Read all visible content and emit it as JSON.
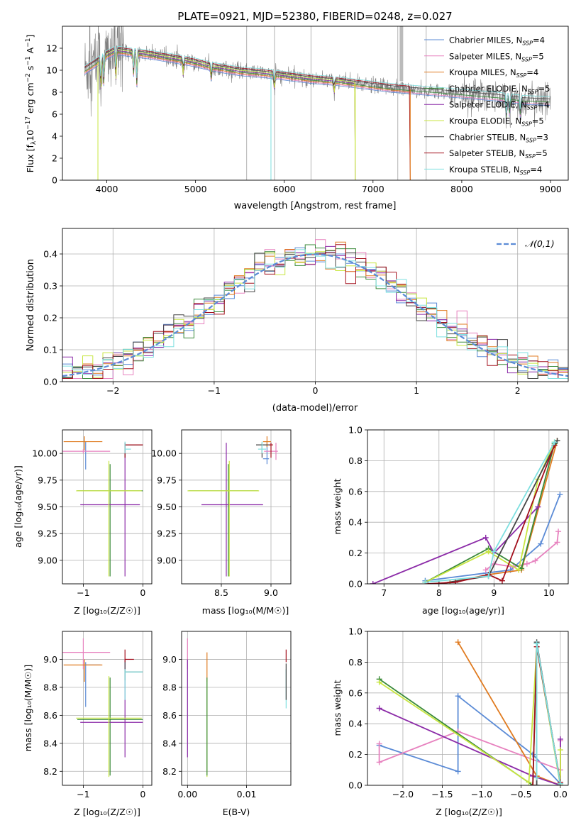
{
  "colors": {
    "Chabrier MILES": "#5b8bd6",
    "Salpeter MILES": "#e782bf",
    "Kroupa MILES": "#e07b20",
    "Chabrier ELODIE": "#3a8a3a",
    "Salpeter ELODIE": "#8c2ca8",
    "Kroupa ELODIE": "#c8e640",
    "Chabrier STELIB": "#454545",
    "Salpeter STELIB": "#a3101d",
    "Kroupa STELIB": "#7ee0e0",
    "data": "#808080",
    "gaussian": "#5b8bd6"
  },
  "chart_data": [
    {
      "type": "line",
      "title": "PLATE=0921, MJD=52380, FIBERID=0248, z=0.027",
      "xlabel": "wavelength [Angstrom, rest frame]",
      "ylabel": "Flux [fλ10⁻¹⁷ erg cm⁻² s⁻¹ A⁻¹]",
      "xlim": [
        3500,
        9200
      ],
      "ylim": [
        0,
        14
      ],
      "xticks": [
        4000,
        5000,
        6000,
        7000,
        8000,
        9000
      ],
      "yticks": [
        0,
        2,
        4,
        6,
        8,
        10,
        12
      ],
      "legend_position": "upper-right",
      "legend": [
        {
          "name": "Chabrier MILES",
          "nssp": "N_SSP=4"
        },
        {
          "name": "Salpeter MILES",
          "nssp": "N_SSP=5"
        },
        {
          "name": "Kroupa MILES",
          "nssp": "N_SSP=4"
        },
        {
          "name": "Chabrier ELODIE",
          "nssp": "N_SSP=5"
        },
        {
          "name": "Salpeter ELODIE",
          "nssp": "N_SSP=4"
        },
        {
          "name": "Kroupa ELODIE",
          "nssp": "N_SSP=5"
        },
        {
          "name": "Chabrier STELIB",
          "nssp": "N_SSP=3"
        },
        {
          "name": "Salpeter STELIB",
          "nssp": "N_SSP=5"
        },
        {
          "name": "Kroupa STELIB",
          "nssp": "N_SSP=4"
        }
      ],
      "continuum": {
        "x": [
          3750,
          3900,
          4000,
          4100,
          4300,
          4500,
          4800,
          5000,
          5200,
          5500,
          5800,
          6000,
          6300,
          6600,
          7000,
          7200,
          7500,
          7800,
          8100,
          8400,
          8700,
          9000,
          9200
        ],
        "y": [
          10.0,
          10.8,
          11.4,
          11.8,
          11.6,
          11.4,
          11.0,
          10.7,
          10.3,
          9.9,
          9.7,
          9.5,
          9.2,
          9.0,
          8.6,
          8.4,
          8.2,
          8.0,
          7.8,
          7.6,
          7.3,
          7.2,
          7.1
        ]
      },
      "model_ranges": [
        [
          3750,
          9000
        ],
        [
          3750,
          9000
        ],
        [
          3750,
          7420
        ],
        [
          3750,
          9000
        ],
        [
          3900,
          6800
        ],
        [
          3900,
          6800
        ],
        [
          3750,
          9000
        ],
        [
          3750,
          7420
        ],
        [
          3750,
          9000
        ]
      ]
    },
    {
      "type": "histogram",
      "xlabel": "(data-model)/error",
      "ylabel": "Normed distribution",
      "xlim": [
        -2.5,
        2.5
      ],
      "ylim": [
        0,
        0.48
      ],
      "xticks": [
        -2,
        -1,
        0,
        1,
        2
      ],
      "yticks": [
        0,
        0.1,
        0.2,
        0.3,
        0.4
      ],
      "grid": true,
      "legend_label": "𝒩(0,1)",
      "legend_position": "upper-right",
      "bin_width": 0.1
    },
    {
      "type": "errorbar",
      "xlabel": "Z [log₁₀(Z/Z☉)]",
      "ylabel": "age  [log₁₀(age/yr)]",
      "xlim": [
        -1.35,
        0.15
      ],
      "ylim": [
        8.78,
        10.22
      ],
      "xticks": [
        -1,
        0
      ],
      "yticks": [
        9.0,
        9.25,
        9.5,
        9.75,
        10.0
      ],
      "grid": true,
      "points": [
        {
          "s": "Chabrier MILES",
          "x": -0.96,
          "y": 9.95,
          "xe": [
            0,
            0
          ],
          "ye": [
            0.1,
            0.16
          ]
        },
        {
          "s": "Salpeter MILES",
          "x": -1.0,
          "y": 10.02,
          "xe": [
            0.35,
            0.45
          ],
          "ye": [
            0.02,
            0.02
          ]
        },
        {
          "s": "Kroupa MILES",
          "x": -0.98,
          "y": 10.11,
          "xe": [
            0.35,
            0.3
          ],
          "ye": [
            0.08,
            0.05
          ]
        },
        {
          "s": "Chabrier ELODIE",
          "x": -0.55,
          "y": 9.65,
          "xe": [
            0.55,
            0.55
          ],
          "ye": [
            0.8,
            0.25
          ]
        },
        {
          "s": "Salpeter ELODIE",
          "x": -0.3,
          "y": 9.52,
          "xe": [
            0.75,
            0.25
          ],
          "ye": [
            0.67,
            0.58
          ]
        },
        {
          "s": "Kroupa ELODIE",
          "x": -0.57,
          "y": 9.65,
          "xe": [
            0.55,
            0.55
          ],
          "ye": [
            0.8,
            0.28
          ]
        },
        {
          "s": "Chabrier STELIB",
          "x": -0.3,
          "y": 10.08,
          "xe": [
            0,
            0.3
          ],
          "ye": [
            0.12,
            0.02
          ]
        },
        {
          "s": "Salpeter STELIB",
          "x": -0.3,
          "y": 10.08,
          "xe": [
            0,
            0.3
          ],
          "ye": [
            0.12,
            0.02
          ]
        },
        {
          "s": "Kroupa STELIB",
          "x": -0.3,
          "y": 10.04,
          "xe": [
            0,
            0.1
          ],
          "ye": [
            0.04,
            0.07
          ]
        }
      ]
    },
    {
      "type": "errorbar",
      "xlabel": "mass [log₁₀(M/M☉)]",
      "xlim": [
        8.1,
        9.2
      ],
      "ylim": [
        8.78,
        10.22
      ],
      "xticks": [
        8.5,
        9.0
      ],
      "yticks": [
        9.0,
        9.25,
        9.5,
        9.75,
        10.0
      ],
      "grid": true,
      "points": [
        {
          "s": "Chabrier MILES",
          "x": 8.96,
          "y": 9.95,
          "xe": [
            0.04,
            0.02
          ],
          "ye": [
            0.05,
            0.16
          ]
        },
        {
          "s": "Salpeter MILES",
          "x": 9.05,
          "y": 10.02,
          "xe": [
            0.12,
            0.02
          ],
          "ye": [
            0.08,
            0.08
          ]
        },
        {
          "s": "Kroupa MILES",
          "x": 8.96,
          "y": 10.11,
          "xe": [
            0.04,
            0.04
          ],
          "ye": [
            0.05,
            0.05
          ]
        },
        {
          "s": "Chabrier ELODIE",
          "x": 8.57,
          "y": 9.65,
          "xe": [
            0.4,
            0.3
          ],
          "ye": [
            0.8,
            0.25
          ]
        },
        {
          "s": "Salpeter ELODIE",
          "x": 8.55,
          "y": 9.52,
          "xe": [
            0.25,
            0.37
          ],
          "ye": [
            0.67,
            0.58
          ]
        },
        {
          "s": "Kroupa ELODIE",
          "x": 8.58,
          "y": 9.65,
          "xe": [
            0.42,
            0.3
          ],
          "ye": [
            0.8,
            0.28
          ]
        },
        {
          "s": "Chabrier STELIB",
          "x": 8.91,
          "y": 10.08,
          "xe": [
            0.06,
            0.09
          ],
          "ye": [
            0.12,
            0.02
          ]
        },
        {
          "s": "Salpeter STELIB",
          "x": 9.0,
          "y": 10.08,
          "xe": [
            0.02,
            0.02
          ],
          "ye": [
            0.12,
            0.02
          ]
        },
        {
          "s": "Kroupa STELIB",
          "x": 8.91,
          "y": 10.04,
          "xe": [
            0.04,
            0.04
          ],
          "ye": [
            0.04,
            0.07
          ]
        }
      ]
    },
    {
      "type": "line",
      "xlabel": "age  [log₁₀(age/yr)]",
      "ylabel": "mass weight",
      "xlim": [
        6.7,
        10.35
      ],
      "ylim": [
        0,
        1
      ],
      "xticks": [
        7,
        8,
        9,
        10
      ],
      "yticks": [
        0,
        0.2,
        0.4,
        0.6,
        0.8,
        1.0
      ],
      "grid": true,
      "series": [
        {
          "s": "Chabrier MILES",
          "x": [
            7.75,
            8.85,
            9.3,
            9.85,
            10.2
          ],
          "y": [
            0.02,
            0.07,
            0.09,
            0.26,
            0.58
          ]
        },
        {
          "s": "Salpeter MILES",
          "x": [
            8.85,
            9.0,
            9.35,
            9.6,
            9.75,
            10.15,
            10.17
          ],
          "y": [
            0.09,
            0.13,
            0.11,
            0.13,
            0.15,
            0.27,
            0.34
          ]
        },
        {
          "s": "Kroupa MILES",
          "x": [
            8.2,
            8.9,
            9.5,
            10.15
          ],
          "y": [
            0.01,
            0.06,
            0.09,
            0.93
          ]
        },
        {
          "s": "Chabrier ELODIE",
          "x": [
            7.75,
            8.9,
            9.5,
            10.1
          ],
          "y": [
            0.01,
            0.23,
            0.1,
            0.91
          ]
        },
        {
          "s": "Salpeter ELODIE",
          "x": [
            6.8,
            8.85,
            9.0,
            9.8
          ],
          "y": [
            0.0,
            0.3,
            0.2,
            0.5
          ]
        },
        {
          "s": "Kroupa ELODIE",
          "x": [
            7.75,
            8.9,
            9.45,
            9.8,
            10.1
          ],
          "y": [
            0.01,
            0.21,
            0.09,
            0.68,
            0.92
          ]
        },
        {
          "s": "Chabrier STELIB",
          "x": [
            8.0,
            8.9,
            10.15
          ],
          "y": [
            0.0,
            0.05,
            0.93
          ]
        },
        {
          "s": "Salpeter STELIB",
          "x": [
            7.8,
            8.3,
            8.9,
            9.15,
            10.1
          ],
          "y": [
            0.0,
            0.01,
            0.06,
            0.02,
            0.9
          ]
        },
        {
          "s": "Kroupa STELIB",
          "x": [
            7.75,
            8.9,
            9.0,
            10.1
          ],
          "y": [
            0.01,
            0.05,
            0.21,
            0.92
          ]
        }
      ]
    },
    {
      "type": "errorbar",
      "xlabel": "Z [log₁₀(Z/Z☉)]",
      "ylabel": "mass [log₁₀(M/M☉)]",
      "xlim": [
        -1.35,
        0.15
      ],
      "ylim": [
        8.1,
        9.2
      ],
      "xticks": [
        -1,
        0
      ],
      "yticks": [
        8.2,
        8.4,
        8.6,
        8.8,
        9.0
      ],
      "grid": true,
      "points": [
        {
          "s": "Chabrier MILES",
          "x": -0.96,
          "y": 8.96,
          "xe": [
            0,
            0.25
          ],
          "ye": [
            0.3,
            0.02
          ]
        },
        {
          "s": "Salpeter MILES",
          "x": -1.0,
          "y": 9.05,
          "xe": [
            0.35,
            0.45
          ],
          "ye": [
            0.12,
            0.1
          ]
        },
        {
          "s": "Kroupa MILES",
          "x": -0.98,
          "y": 8.96,
          "xe": [
            0.35,
            0.3
          ],
          "ye": [
            0.12,
            0.04
          ]
        },
        {
          "s": "Chabrier ELODIE",
          "x": -0.55,
          "y": 8.57,
          "xe": [
            0.55,
            0.55
          ],
          "ye": [
            0.4,
            0.3
          ]
        },
        {
          "s": "Salpeter ELODIE",
          "x": -0.3,
          "y": 8.55,
          "xe": [
            0.75,
            0.3
          ],
          "ye": [
            0.25,
            0.45
          ]
        },
        {
          "s": "Kroupa ELODIE",
          "x": -0.57,
          "y": 8.58,
          "xe": [
            0.55,
            0.55
          ],
          "ye": [
            0.42,
            0.3
          ]
        },
        {
          "s": "Chabrier STELIB",
          "x": -0.3,
          "y": 8.91,
          "xe": [
            0,
            0.3
          ],
          "ye": [
            0.06,
            0.08
          ]
        },
        {
          "s": "Salpeter STELIB",
          "x": -0.3,
          "y": 9.0,
          "xe": [
            0,
            0.15
          ],
          "ye": [
            0.02,
            0.07
          ]
        },
        {
          "s": "Kroupa STELIB",
          "x": -0.3,
          "y": 8.91,
          "xe": [
            0,
            0.3
          ],
          "ye": [
            0.2,
            0.02
          ]
        }
      ]
    },
    {
      "type": "errorbar",
      "xlabel": "E(B-V)",
      "xlim": [
        -0.001,
        0.0175
      ],
      "ylim": [
        8.1,
        9.2
      ],
      "xticks": [
        0.0,
        0.01
      ],
      "xticklabels": [
        "0.00",
        "0.01"
      ],
      "yticks": [
        8.2,
        8.4,
        8.6,
        8.8,
        9.0
      ],
      "grid": true,
      "points": [
        {
          "s": "Salpeter MILES",
          "x": 0.0,
          "y": 9.05,
          "xe": [
            0,
            0
          ],
          "ye": [
            0.12,
            0.1
          ]
        },
        {
          "s": "Salpeter ELODIE",
          "x": 0.0,
          "y": 8.55,
          "xe": [
            0,
            0
          ],
          "ye": [
            0.25,
            0.45
          ]
        },
        {
          "s": "Kroupa MILES",
          "x": 0.0033,
          "y": 8.96,
          "xe": [
            0,
            0
          ],
          "ye": [
            0.12,
            0.09
          ]
        },
        {
          "s": "Kroupa ELODIE",
          "x": 0.0033,
          "y": 8.58,
          "xe": [
            0,
            0
          ],
          "ye": [
            0.42,
            0.28
          ]
        },
        {
          "s": "Chabrier ELODIE",
          "x": 0.0033,
          "y": 8.57,
          "xe": [
            0,
            0
          ],
          "ye": [
            0.4,
            0.3
          ]
        },
        {
          "s": "Salpeter STELIB",
          "x": 0.0167,
          "y": 9.0,
          "xe": [
            0,
            0
          ],
          "ye": [
            0.02,
            0.07
          ]
        },
        {
          "s": "Kroupa STELIB",
          "x": 0.0167,
          "y": 8.91,
          "xe": [
            0,
            0
          ],
          "ye": [
            0.26,
            0.02
          ]
        },
        {
          "s": "Chabrier STELIB",
          "x": 0.0167,
          "y": 8.91,
          "xe": [
            0,
            0
          ],
          "ye": [
            0.2,
            0.06
          ]
        }
      ]
    },
    {
      "type": "line",
      "xlabel": "Z [log₁₀(Z/Z☉)]",
      "ylabel": "mass weight",
      "xlim": [
        -2.45,
        0.1
      ],
      "ylim": [
        0,
        1
      ],
      "xticks": [
        -2.0,
        -1.5,
        -1.0,
        -0.5,
        0.0
      ],
      "yticks": [
        0,
        0.2,
        0.4,
        0.6,
        0.8,
        1.0
      ],
      "grid": true,
      "series": [
        {
          "s": "Chabrier MILES",
          "x": [
            -2.3,
            -1.3,
            -1.3,
            -0.35,
            0.0
          ],
          "y": [
            0.26,
            0.09,
            0.58,
            0.2,
            0.01
          ]
        },
        {
          "s": "Salpeter MILES",
          "x": [
            -2.3,
            -2.3,
            -1.3,
            0.0,
            0.0
          ],
          "y": [
            0.27,
            0.15,
            0.35,
            0.1,
            0.29
          ]
        },
        {
          "s": "Kroupa MILES",
          "x": [
            -1.3,
            -0.3,
            0.0
          ],
          "y": [
            0.93,
            0.06,
            0.0
          ]
        },
        {
          "s": "Chabrier ELODIE",
          "x": [
            -2.3,
            -0.35,
            -0.3,
            0.0
          ],
          "y": [
            0.69,
            0.0,
            0.92,
            0.01
          ]
        },
        {
          "s": "Salpeter ELODIE",
          "x": [
            -2.3,
            -0.35,
            0.0,
            0.0
          ],
          "y": [
            0.5,
            0.06,
            0.0,
            0.3
          ]
        },
        {
          "s": "Kroupa ELODIE",
          "x": [
            -2.3,
            -0.4,
            -0.3,
            0.0,
            0.0
          ],
          "y": [
            0.67,
            0.02,
            0.9,
            0.0,
            0.23
          ]
        },
        {
          "s": "Chabrier STELIB",
          "x": [
            -0.3,
            -0.3,
            0.0
          ],
          "y": [
            0.0,
            0.93,
            0.01
          ]
        },
        {
          "s": "Salpeter STELIB",
          "x": [
            -0.35,
            -0.3,
            0.0
          ],
          "y": [
            0.0,
            0.9,
            0.02
          ]
        },
        {
          "s": "Kroupa STELIB",
          "x": [
            -0.3,
            -0.3,
            0.0
          ],
          "y": [
            0.05,
            0.92,
            0.01
          ]
        }
      ]
    }
  ]
}
